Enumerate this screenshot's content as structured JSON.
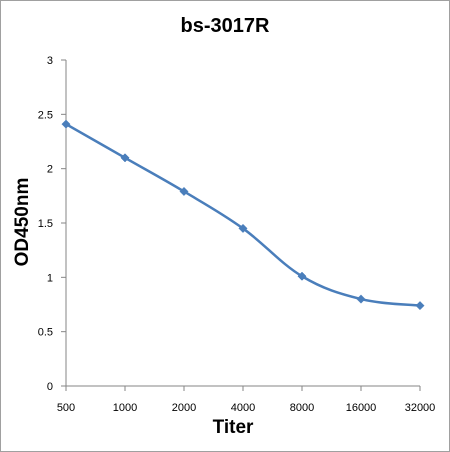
{
  "chart_data": {
    "type": "line",
    "title": "bs-3017R",
    "xlabel": "Titer",
    "ylabel": "OD450nm",
    "categories": [
      "500",
      "1000",
      "2000",
      "4000",
      "8000",
      "16000",
      "32000"
    ],
    "series": [
      {
        "values": [
          2.41,
          2.1,
          1.79,
          1.45,
          1.01,
          0.8,
          0.74
        ]
      }
    ],
    "ylim": [
      0,
      3
    ],
    "yticks": [
      "0",
      "0.5",
      "1",
      "1.5",
      "2",
      "2.5",
      "3"
    ],
    "grid": false,
    "legend": "none",
    "line_color": "#4a7ebb"
  }
}
